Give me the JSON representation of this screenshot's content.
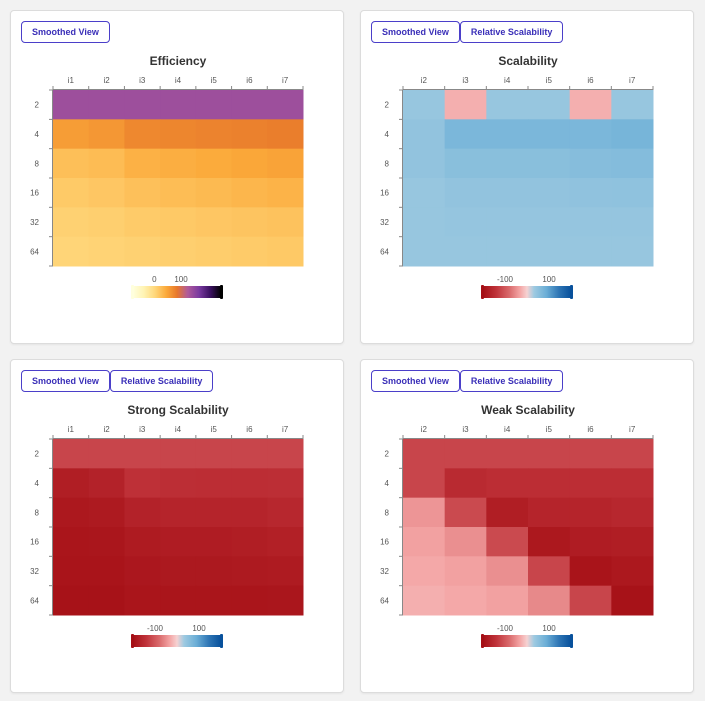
{
  "buttons": {
    "smoothed": "Smoothed View",
    "relative": "Relative Scalability"
  },
  "chart_data": [
    {
      "type": "heatmap",
      "title": "Efficiency",
      "x": [
        "i1",
        "i2",
        "i3",
        "i4",
        "i5",
        "i6",
        "i7"
      ],
      "y": [
        "2",
        "4",
        "8",
        "16",
        "32",
        "64"
      ],
      "values": [
        [
          140,
          140,
          140,
          140,
          140,
          140,
          140
        ],
        [
          55,
          60,
          72,
          74,
          76,
          78,
          80
        ],
        [
          25,
          28,
          38,
          41,
          44,
          47,
          50
        ],
        [
          15,
          18,
          24,
          27,
          30,
          33,
          36
        ],
        [
          8,
          10,
          14,
          16,
          18,
          20,
          22
        ],
        [
          4,
          6,
          8,
          10,
          12,
          14,
          16
        ]
      ],
      "colorbar": {
        "ticks": [
          "0",
          "100"
        ],
        "min": -80,
        "max": 250,
        "scheme": "inferno-reversed"
      }
    },
    {
      "type": "heatmap",
      "title": "Scalability",
      "x": [
        "i2",
        "i3",
        "i4",
        "i5",
        "i6",
        "i7"
      ],
      "y": [
        "2",
        "4",
        "8",
        "16",
        "32",
        "64"
      ],
      "values": [
        [
          40,
          -25,
          40,
          40,
          -25,
          40
        ],
        [
          45,
          70,
          70,
          70,
          70,
          75
        ],
        [
          45,
          55,
          55,
          55,
          58,
          60
        ],
        [
          40,
          45,
          45,
          45,
          47,
          48
        ],
        [
          40,
          42,
          42,
          42,
          42,
          42
        ],
        [
          40,
          40,
          40,
          40,
          40,
          40
        ]
      ],
      "colorbar": {
        "ticks": [
          "-100",
          "100"
        ],
        "min": -200,
        "max": 200,
        "scheme": "red-blue"
      }
    },
    {
      "type": "heatmap",
      "title": "Strong Scalability",
      "x": [
        "i1",
        "i2",
        "i3",
        "i4",
        "i5",
        "i6",
        "i7"
      ],
      "y": [
        "2",
        "4",
        "8",
        "16",
        "32",
        "64"
      ],
      "values": [
        [
          -120,
          -120,
          -120,
          -120,
          -120,
          -120,
          -120
        ],
        [
          -175,
          -168,
          -145,
          -148,
          -150,
          -150,
          -148
        ],
        [
          -185,
          -182,
          -168,
          -165,
          -165,
          -165,
          -160
        ],
        [
          -190,
          -188,
          -180,
          -178,
          -178,
          -175,
          -172
        ],
        [
          -192,
          -192,
          -186,
          -184,
          -184,
          -182,
          -180
        ],
        [
          -195,
          -195,
          -190,
          -190,
          -190,
          -190,
          -188
        ]
      ],
      "colorbar": {
        "ticks": [
          "-100",
          "100"
        ],
        "min": -200,
        "max": 200,
        "scheme": "red-blue"
      }
    },
    {
      "type": "heatmap",
      "title": "Weak Scalability",
      "x": [
        "i2",
        "i3",
        "i4",
        "i5",
        "i6",
        "i7"
      ],
      "y": [
        "2",
        "4",
        "8",
        "16",
        "32",
        "64"
      ],
      "values": [
        [
          -120,
          -120,
          -120,
          -120,
          -120,
          -120
        ],
        [
          -120,
          -155,
          -150,
          -150,
          -150,
          -150
        ],
        [
          -45,
          -115,
          -175,
          -165,
          -165,
          -160
        ],
        [
          -35,
          -50,
          -115,
          -185,
          -178,
          -175
        ],
        [
          -30,
          -35,
          -50,
          -120,
          -192,
          -185
        ],
        [
          -25,
          -30,
          -35,
          -55,
          -120,
          -195
        ]
      ],
      "colorbar": {
        "ticks": [
          "-100",
          "100"
        ],
        "min": -200,
        "max": 200,
        "scheme": "red-blue"
      }
    }
  ]
}
